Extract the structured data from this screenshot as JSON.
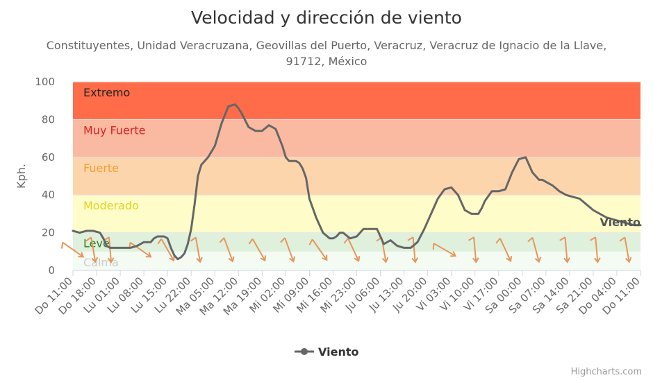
{
  "chart_data": {
    "type": "line",
    "title": "Velocidad y dirección de viento",
    "subtitle_line1": "Constituyentes, Unidad Veracruzana, Geovillas del Puerto, Veracruz, Veracruz de Ignacio de la Llave,",
    "subtitle_line2": "91712, México",
    "ylabel": "Kph.",
    "ylim": [
      0,
      100
    ],
    "yticks": [
      0,
      20,
      40,
      60,
      80,
      100
    ],
    "xlim": [
      0,
      168
    ],
    "xtick_labels": [
      "Do 11:00",
      "Do 18:00",
      "Lu 01:00",
      "Lu 08:00",
      "Lu 15:00",
      "Lu 22:00",
      "Ma 05:00",
      "Ma 12:00",
      "Ma 19:00",
      "Mi 02:00",
      "Mi 09:00",
      "Mi 16:00",
      "Mi 23:00",
      "Ju 06:00",
      "Ju 13:00",
      "Ju 20:00",
      "Vi 03:00",
      "Vi 10:00",
      "Vi 17:00",
      "Sa 00:00",
      "Sa 07:00",
      "Sa 14:00",
      "Sa 21:00",
      "Do 04:00",
      "Do 11:00"
    ],
    "xtick_step_hours": 7,
    "bands": [
      {
        "label": "Calma",
        "from": 0,
        "to": 10,
        "color": "#f3fbf3",
        "label_color": "#cccccc"
      },
      {
        "label": "Leve",
        "from": 10,
        "to": 20,
        "color": "#dff0dc",
        "label_color": "#2e7d1e"
      },
      {
        "label": "Moderado",
        "from": 20,
        "to": 40,
        "color": "#fefcc8",
        "label_color": "#e0d420"
      },
      {
        "label": "Fuerte",
        "from": 40,
        "to": 60,
        "color": "#fdd5ac",
        "label_color": "#f0a030"
      },
      {
        "label": "Muy Fuerte",
        "from": 60,
        "to": 80,
        "color": "#fab9a1",
        "label_color": "#dd2222"
      },
      {
        "label": "Extremo",
        "from": 80,
        "to": 100,
        "color": "#fe6c4a",
        "label_color": "#222222"
      }
    ],
    "series": [
      {
        "name": "Viento",
        "color": "#666666",
        "x": [
          0,
          2,
          4,
          6,
          8,
          9,
          10,
          11,
          13,
          15,
          17,
          19,
          21,
          23,
          24,
          25,
          26,
          27,
          28,
          29,
          30,
          31,
          32,
          33,
          34,
          35,
          36,
          37,
          38,
          40,
          42,
          44,
          46,
          48,
          49,
          50,
          52,
          54,
          56,
          58,
          60,
          62,
          63,
          64,
          65,
          66,
          67,
          68,
          69,
          70,
          71,
          72,
          74,
          76,
          77,
          78,
          79,
          80,
          82,
          84,
          86,
          88,
          90,
          92,
          94,
          96,
          98,
          100,
          102,
          104,
          106,
          108,
          110,
          112,
          114,
          116,
          118,
          120,
          121,
          122,
          124,
          126,
          128,
          130,
          132,
          134,
          136,
          138,
          139,
          140,
          141,
          142,
          144,
          146,
          148,
          150,
          152,
          154,
          156,
          158,
          160,
          162,
          164,
          166,
          168
        ],
        "y": [
          21,
          20,
          21,
          21,
          20,
          17,
          13,
          12,
          12,
          12,
          12,
          13,
          15,
          15,
          17,
          18,
          18,
          18,
          17,
          12,
          8,
          6,
          7,
          9,
          14,
          22,
          35,
          50,
          56,
          60,
          66,
          78,
          87,
          88,
          86,
          83,
          76,
          74,
          74,
          77,
          75,
          66,
          60,
          58,
          58,
          58,
          57,
          54,
          49,
          38,
          33,
          28,
          20,
          17,
          17,
          18,
          20,
          20,
          17,
          18,
          22,
          22,
          22,
          14,
          16,
          13,
          12,
          12,
          15,
          22,
          30,
          38,
          43,
          44,
          40,
          32,
          30,
          30,
          33,
          37,
          42,
          42,
          43,
          52,
          59,
          60,
          52,
          48,
          48,
          47,
          46,
          45,
          42,
          40,
          39,
          38,
          35,
          32,
          30,
          28,
          27,
          26,
          25,
          24,
          24
        ]
      }
    ],
    "wind_direction_arrows": [
      {
        "x": 0,
        "rotation": 125
      },
      {
        "x": 6,
        "rotation": 170
      },
      {
        "x": 11,
        "rotation": 175
      },
      {
        "x": 20,
        "rotation": 125
      },
      {
        "x": 28,
        "rotation": 150
      },
      {
        "x": 37,
        "rotation": 170
      },
      {
        "x": 46,
        "rotation": 160
      },
      {
        "x": 55,
        "rotation": 150
      },
      {
        "x": 64,
        "rotation": 160
      },
      {
        "x": 73,
        "rotation": 145
      },
      {
        "x": 83,
        "rotation": 155
      },
      {
        "x": 92,
        "rotation": 170
      },
      {
        "x": 101,
        "rotation": 175
      },
      {
        "x": 110,
        "rotation": 120
      },
      {
        "x": 119,
        "rotation": 175
      },
      {
        "x": 128,
        "rotation": 155
      },
      {
        "x": 137,
        "rotation": 165
      },
      {
        "x": 146,
        "rotation": 175
      },
      {
        "x": 155,
        "rotation": 175
      },
      {
        "x": 164,
        "rotation": 170
      }
    ],
    "arrow_color": "#e8955a",
    "legend": {
      "label": "Viento",
      "position": "bottom-center"
    },
    "series_end_label": "Viento",
    "credits": "Highcharts.com"
  }
}
